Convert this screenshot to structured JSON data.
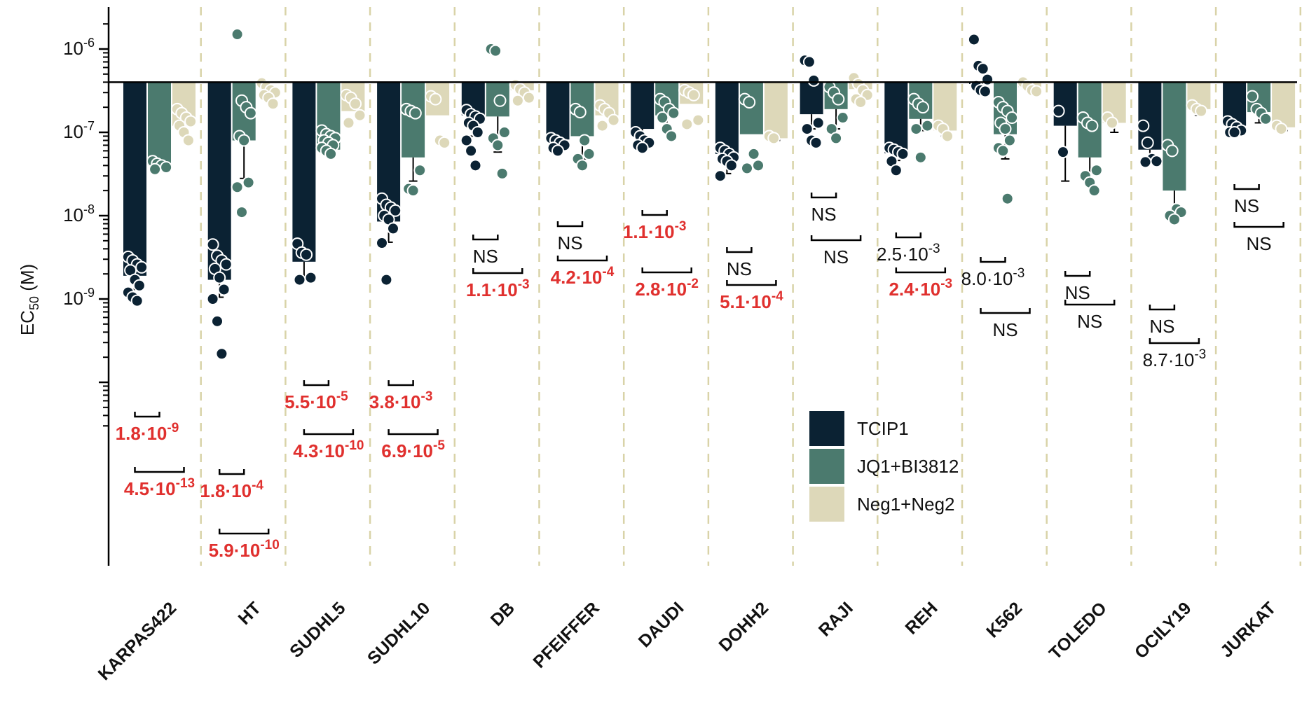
{
  "chart_data": {
    "type": "bar",
    "ylabel": "EC",
    "ylabel_sub": "50",
    "ylabel_unit": " (M)",
    "yscale": "log",
    "ylim": [
      3e-11,
      2.6e-06
    ],
    "baseline": 4e-07,
    "yticks": [
      {
        "base": "10",
        "exp": "-6",
        "value": 1e-06
      },
      {
        "base": "10",
        "exp": "-7",
        "value": 1e-07
      },
      {
        "base": "10",
        "exp": "-8",
        "value": 1e-08
      },
      {
        "base": "10",
        "exp": "-9",
        "value": 1e-09
      }
    ],
    "categories": [
      "KARPAS422",
      "HT",
      "SUDHL5",
      "SUDHL10",
      "DB",
      "PFEIFFER",
      "DAUDI",
      "DOHH2",
      "RAJI",
      "REH",
      "K562",
      "TOLEDO",
      "OCILY19",
      "JURKAT"
    ],
    "series": [
      {
        "name": "TCIP1",
        "color": "#0b2233",
        "values": [
          1.9e-09,
          1.7e-09,
          2.8e-09,
          8.5e-09,
          1.6e-07,
          8.2e-08,
          1.1e-07,
          5.5e-08,
          1.65e-07,
          5.6e-08,
          3.8e-07,
          1.2e-07,
          6.2e-08,
          1.2e-07
        ],
        "errors": [
          [
            1.3e-09,
            2.4e-09
          ],
          [
            1.05e-09,
            4e-09
          ],
          [
            1.75e-09,
            3.8e-09
          ],
          [
            4.8e-09,
            1.3e-08
          ],
          [
            9e-08,
            2e-07
          ],
          [
            6e-08,
            1e-07
          ],
          [
            8e-08,
            1.3e-07
          ],
          [
            3.2e-08,
            8e-08
          ],
          [
            1.1e-07,
            2.2e-07
          ],
          [
            4.6e-08,
            6.5e-08
          ],
          [
            3e-07,
            4.8e-07
          ],
          [
            2.6e-08,
            6e-07
          ],
          [
            4.5e-08,
            8e-08
          ],
          [
            1e-07,
            1.4e-07
          ]
        ],
        "points": [
          [
            3.2e-09,
            2.9e-09,
            2.6e-09,
            2.4e-09,
            2.2e-09,
            1.7e-09,
            1.45e-09,
            1.2e-09,
            1.05e-09,
            9.5e-10
          ],
          [
            4.5e-09,
            3.3e-09,
            2.9e-09,
            2.6e-09,
            2.3e-09,
            1.8e-09,
            1.3e-09,
            1e-09,
            5.4e-10,
            2.2e-10
          ],
          [
            4.6e-09,
            3.6e-09,
            3.4e-09,
            1.8e-09,
            1.7e-09
          ],
          [
            1.6e-08,
            1.35e-08,
            1.25e-08,
            1.15e-08,
            1e-08,
            9e-09,
            7e-09,
            4.7e-09,
            1.7e-09
          ],
          [
            1.85e-07,
            1.65e-07,
            1.55e-07,
            1.45e-07,
            1.3e-07,
            1.2e-07,
            1e-07,
            8e-08,
            6e-08,
            4e-08
          ],
          [
            8.5e-08,
            8e-08,
            7.5e-08,
            7e-08,
            6.5e-08,
            6e-08
          ],
          [
            1e-07,
            9e-08,
            8e-08,
            7.5e-08,
            7e-08,
            6.5e-08
          ],
          [
            6.5e-08,
            6e-08,
            5.5e-08,
            5e-08,
            4.8e-08,
            4.5e-08,
            4e-08,
            3e-08
          ],
          [
            7.3e-07,
            7e-07,
            4.2e-07,
            1.3e-07,
            1.1e-07,
            8e-08,
            7.5e-08
          ],
          [
            6.5e-08,
            6.2e-08,
            5.8e-08,
            5.5e-08,
            4.5e-08,
            3.5e-08
          ],
          [
            1.3e-06,
            6.3e-07,
            5.8e-07,
            4.3e-07,
            3.6e-07,
            3.2e-07,
            3.1e-07
          ],
          [
            1.8e-07,
            5.8e-08
          ],
          [
            1.2e-07,
            7.5e-08,
            4.8e-08,
            4.5e-08,
            4.4e-08
          ],
          [
            1.35e-07,
            1.25e-07,
            1.15e-07,
            1.05e-07,
            1e-07,
            1e-07
          ]
        ]
      },
      {
        "name": "JQ1+BI3812",
        "color": "#4b7a6e",
        "values": [
          4e-08,
          8e-08,
          6.2e-08,
          5e-08,
          1.55e-07,
          9e-08,
          1.6e-07,
          9.5e-08,
          1.9e-07,
          1.45e-07,
          9.5e-08,
          5e-08,
          2e-08,
          1.75e-07
        ],
        "errors": [
          [
            3.5e-08,
            4.6e-08
          ],
          [
            2.8e-08,
            8e-08
          ],
          [
            5.5e-08,
            7e-08
          ],
          [
            2.6e-08,
            5e-08
          ],
          [
            5.8e-08,
            1.6e-07
          ],
          [
            4.8e-08,
            9e-08
          ],
          [
            1.2e-07,
            2.3e-07
          ],
          [
            9.5e-08,
            9.5e-08
          ],
          [
            1.1e-07,
            1.9e-07
          ],
          [
            1.05e-07,
            1.45e-07
          ],
          [
            4.8e-08,
            9.5e-08
          ],
          [
            2.6e-08,
            5e-08
          ],
          [
            1.05e-08,
            2e-08
          ],
          [
            1.3e-07,
            1.75e-07
          ]
        ],
        "points": [
          [
            4.5e-08,
            4.2e-08,
            4e-08,
            3.8e-08,
            3.6e-08
          ],
          [
            1.5e-06,
            2.4e-07,
            2e-07,
            1.7e-07,
            9e-08,
            8e-08,
            2.5e-08,
            2.2e-08,
            1.1e-08
          ],
          [
            1.05e-07,
            9.5e-08,
            9e-08,
            8.5e-08,
            8e-08,
            7.5e-08,
            7e-08,
            6.5e-08,
            6e-08,
            5.5e-08
          ],
          [
            1.9e-07,
            1.8e-07,
            1.7e-07,
            3.5e-08,
            2.1e-08,
            2e-08
          ],
          [
            1e-06,
            9.5e-07,
            2.4e-07,
            1e-07,
            8.5e-08,
            7e-08,
            3.2e-08
          ],
          [
            1.9e-07,
            1.75e-07,
            8e-08,
            5.5e-08,
            4.8e-08,
            4e-08
          ],
          [
            2.5e-07,
            2.3e-07,
            1.9e-07,
            1.7e-07,
            1.5e-07,
            1.1e-07,
            9e-08
          ],
          [
            2.5e-07,
            2.3e-07,
            5.5e-08,
            4e-08,
            3.7e-08
          ],
          [
            3.5e-07,
            3e-07,
            2.5e-07,
            1.5e-07,
            1.1e-07,
            8.5e-08
          ],
          [
            2.5e-07,
            2.2e-07,
            2e-07,
            1.2e-07,
            1.1e-07,
            5e-08
          ],
          [
            2.3e-07,
            2e-07,
            1.8e-07,
            1.5e-07,
            1.3e-07,
            1.1e-07,
            8e-08,
            6.5e-08,
            6e-08,
            1.6e-08
          ],
          [
            1.5e-07,
            1.3e-07,
            1.2e-07,
            3.5e-08,
            3e-08,
            2.5e-08,
            2e-08
          ],
          [
            7e-08,
            6e-08,
            1.2e-08,
            1.1e-08,
            1e-08,
            9e-09
          ],
          [
            2.7e-07,
            1.9e-07,
            1.7e-07,
            1.45e-07
          ]
        ]
      },
      {
        "name": "Neg1+Neg2",
        "color": "#ddd8b9",
        "values": [
          1.2e-07,
          4e-07,
          1.8e-07,
          1.6e-07,
          3.2e-07,
          1.6e-07,
          2.2e-07,
          8.5e-08,
          3.3e-07,
          1.05e-07,
          3.5e-07,
          1.3e-07,
          1.9e-07,
          1.15e-07
        ],
        "errors": [
          [
            1.2e-07,
            1.3e-07
          ],
          [
            4e-07,
            4e-07
          ],
          [
            1.8e-07,
            2.05e-07
          ],
          [
            1.6e-07,
            1.6e-07
          ],
          [
            3.2e-07,
            3.2e-07
          ],
          [
            1.6e-07,
            1.6e-07
          ],
          [
            2.2e-07,
            2.2e-07
          ],
          [
            8e-08,
            8.5e-08
          ],
          [
            3.3e-07,
            3.3e-07
          ],
          [
            9e-08,
            1.05e-07
          ],
          [
            3.5e-07,
            3.5e-07
          ],
          [
            1e-07,
            1.3e-07
          ],
          [
            1.6e-07,
            1.9e-07
          ],
          [
            1.05e-07,
            1.15e-07
          ]
        ],
        "points": [
          [
            1.9e-07,
            1.7e-07,
            1.5e-07,
            1.35e-07,
            1.2e-07,
            1e-07,
            8e-08
          ],
          [
            3.9e-07,
            3.5e-07,
            3.2e-07,
            3e-07,
            2.8e-07,
            2.6e-07,
            2.2e-07
          ],
          [
            2.8e-07,
            2.6e-07,
            2.2e-07,
            1.6e-07,
            1.3e-07
          ],
          [
            2.7e-07,
            2.5e-07,
            8e-08,
            7.5e-08
          ],
          [
            3.7e-07,
            3.3e-07,
            3e-07,
            2.6e-07,
            2.4e-07
          ],
          [
            2.1e-07,
            1.9e-07,
            1.7e-07,
            1.4e-07,
            1.2e-07
          ],
          [
            3.2e-07,
            3e-07,
            2.8e-07,
            1.4e-07,
            1.25e-07
          ],
          [
            9e-08,
            8.5e-08
          ],
          [
            4.5e-07,
            3.8e-07,
            3.2e-07,
            2.8e-07,
            2.5e-07,
            2.3e-07
          ],
          [
            1.2e-07,
            1.1e-07,
            9e-08
          ],
          [
            4e-07,
            3.6e-07,
            3.2e-07,
            3.1e-07
          ],
          [
            1.5e-07,
            1.3e-07
          ],
          [
            2.1e-07,
            1.9e-07,
            1.8e-07
          ],
          [
            1.2e-07,
            1.1e-07
          ]
        ]
      }
    ],
    "annotations": [
      {
        "category": 0,
        "lines": [
          {
            "text": "1.8·10",
            "exp": "-9",
            "sig": true
          },
          {
            "text": "4.5·10",
            "exp": "-13",
            "sig": true
          }
        ]
      },
      {
        "category": 1,
        "lines": [
          {
            "text": "1.8·10",
            "exp": "-4",
            "sig": true
          },
          {
            "text": "5.9·10",
            "exp": "-10",
            "sig": true
          }
        ]
      },
      {
        "category": 2,
        "lines": [
          {
            "text": "5.5·10",
            "exp": "-5",
            "sig": true
          },
          {
            "text": "4.3·10",
            "exp": "-10",
            "sig": true
          }
        ]
      },
      {
        "category": 3,
        "lines": [
          {
            "text": "3.8·10",
            "exp": "-3",
            "sig": true
          },
          {
            "text": "6.9·10",
            "exp": "-5",
            "sig": true
          }
        ]
      },
      {
        "category": 4,
        "lines": [
          {
            "text": "NS",
            "exp": "",
            "sig": false
          },
          {
            "text": "1.1·10",
            "exp": "-3",
            "sig": true
          }
        ]
      },
      {
        "category": 5,
        "lines": [
          {
            "text": "NS",
            "exp": "",
            "sig": false
          },
          {
            "text": "4.2·10",
            "exp": "-4",
            "sig": true
          }
        ]
      },
      {
        "category": 6,
        "lines": [
          {
            "text": "1.1·10",
            "exp": "-3",
            "sig": true
          },
          {
            "text": "2.8·10",
            "exp": "-2",
            "sig": true
          }
        ]
      },
      {
        "category": 7,
        "lines": [
          {
            "text": "NS",
            "exp": "",
            "sig": false
          },
          {
            "text": "5.1·10",
            "exp": "-4",
            "sig": true
          }
        ]
      },
      {
        "category": 8,
        "lines": [
          {
            "text": "NS",
            "exp": "",
            "sig": false
          },
          {
            "text": "NS",
            "exp": "",
            "sig": false
          }
        ]
      },
      {
        "category": 9,
        "lines": [
          {
            "text": "2.5·10",
            "exp": "-3",
            "sig": false
          },
          {
            "text": "2.4·10",
            "exp": "-3",
            "sig": true
          }
        ]
      },
      {
        "category": 10,
        "lines": [
          {
            "text": "8.0·10",
            "exp": "-3",
            "sig": false
          },
          {
            "text": "NS",
            "exp": "",
            "sig": false
          }
        ]
      },
      {
        "category": 11,
        "lines": [
          {
            "text": "NS",
            "exp": "",
            "sig": false
          },
          {
            "text": "NS",
            "exp": "",
            "sig": false
          }
        ]
      },
      {
        "category": 12,
        "lines": [
          {
            "text": "NS",
            "exp": "",
            "sig": false
          },
          {
            "text": "8.7·10",
            "exp": "-3",
            "sig": false
          }
        ]
      },
      {
        "category": 13,
        "lines": [
          {
            "text": "NS",
            "exp": "",
            "sig": false
          },
          {
            "text": "NS",
            "exp": "",
            "sig": false
          }
        ]
      }
    ],
    "annotation_colors": {
      "sig": "#e0302e",
      "ns": "#111111"
    },
    "legend": {
      "position": "lower-right"
    },
    "separator_color": "#d9d3a8",
    "grid": false
  }
}
